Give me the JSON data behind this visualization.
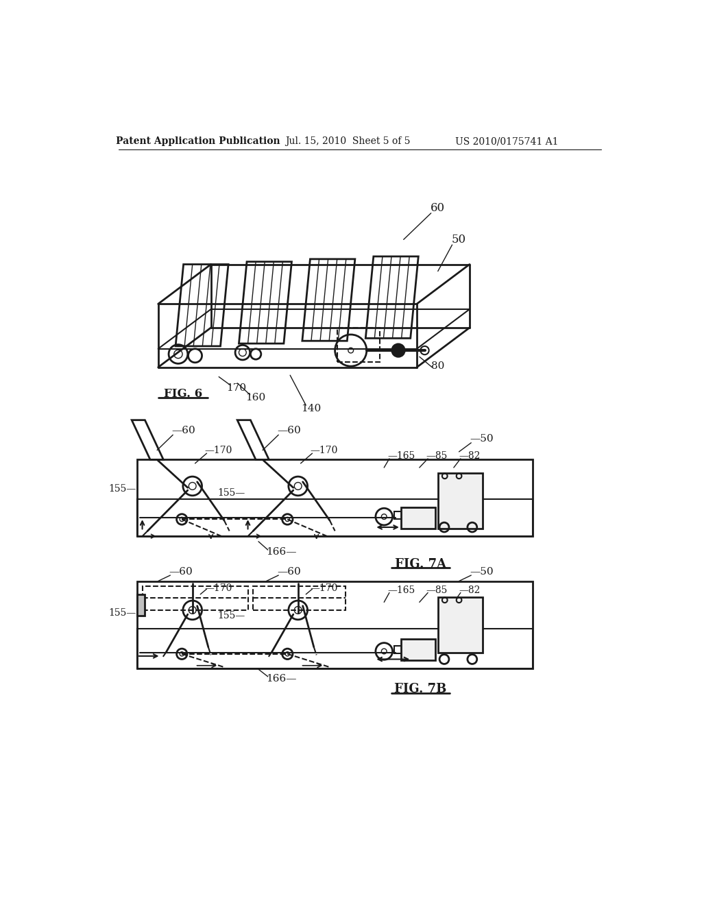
{
  "bg_color": "#ffffff",
  "lc": "#1a1a1a",
  "header_left": "Patent Application Publication",
  "header_mid": "Jul. 15, 2010  Sheet 5 of 5",
  "header_right": "US 2010/0175741 A1",
  "fig6_label": "FIG. 6",
  "fig7a_label": "FIG. 7A",
  "fig7b_label": "FIG. 7B"
}
